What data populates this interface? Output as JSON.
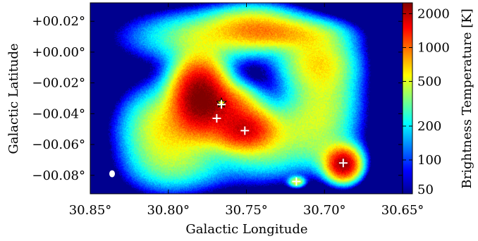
{
  "chart_data": {
    "type": "heatmap",
    "title": "",
    "xlabel": "Galactic Longitude",
    "ylabel": "Galactic Latitude",
    "xlim": [
      30.85,
      30.65
    ],
    "ylim": [
      -0.092,
      0.032
    ],
    "x_ticks": [
      {
        "value": 30.85,
        "label": "30.85°"
      },
      {
        "value": 30.8,
        "label": "30.80°"
      },
      {
        "value": 30.75,
        "label": "30.75°"
      },
      {
        "value": 30.7,
        "label": "30.70°"
      },
      {
        "value": 30.65,
        "label": "30.65°"
      }
    ],
    "y_ticks": [
      {
        "value": 0.02,
        "label": "+00.02°"
      },
      {
        "value": 0.0,
        "label": "+00.00°"
      },
      {
        "value": -0.02,
        "label": "−00.02°"
      },
      {
        "value": -0.04,
        "label": "−00.04°"
      },
      {
        "value": -0.06,
        "label": "−00.06°"
      },
      {
        "value": -0.08,
        "label": "−00.08°"
      }
    ],
    "colorbar": {
      "label": "Brightness Temperature [K]",
      "scale": "log",
      "range": [
        50,
        2500
      ],
      "ticks": [
        {
          "value": 2000,
          "label": "2000"
        },
        {
          "value": 1000,
          "label": "1000"
        },
        {
          "value": 500,
          "label": "500"
        },
        {
          "value": 200,
          "label": "200"
        },
        {
          "value": 100,
          "label": "100"
        },
        {
          "value": 50,
          "label": "50"
        }
      ],
      "colormap": "jet"
    },
    "background_color": "#00008f",
    "emission_components": [
      {
        "l": 30.78,
        "b": -0.028,
        "peak_K": 2400,
        "width_l": 0.01,
        "width_b": 0.014
      },
      {
        "l": 30.762,
        "b": -0.034,
        "peak_K": 900,
        "width_l": 0.012,
        "width_b": 0.008
      },
      {
        "l": 30.752,
        "b": -0.05,
        "peak_K": 1600,
        "width_l": 0.012,
        "width_b": 0.008
      },
      {
        "l": 30.79,
        "b": -0.045,
        "peak_K": 350,
        "width_l": 0.02,
        "width_b": 0.014
      },
      {
        "l": 30.775,
        "b": 0.01,
        "peak_K": 400,
        "width_l": 0.03,
        "width_b": 0.01
      },
      {
        "l": 30.745,
        "b": 0.018,
        "peak_K": 500,
        "width_l": 0.018,
        "width_b": 0.008
      },
      {
        "l": 30.725,
        "b": 0.012,
        "peak_K": 450,
        "width_l": 0.022,
        "width_b": 0.006
      },
      {
        "l": 30.705,
        "b": -0.005,
        "peak_K": 500,
        "width_l": 0.015,
        "width_b": 0.012
      },
      {
        "l": 30.7,
        "b": -0.03,
        "peak_K": 350,
        "width_l": 0.014,
        "width_b": 0.018
      },
      {
        "l": 30.715,
        "b": -0.05,
        "peak_K": 300,
        "width_l": 0.018,
        "width_b": 0.014
      },
      {
        "l": 30.805,
        "b": -0.055,
        "peak_K": 350,
        "width_l": 0.016,
        "width_b": 0.018
      },
      {
        "l": 30.79,
        "b": -0.075,
        "peak_K": 200,
        "width_l": 0.02,
        "width_b": 0.01
      },
      {
        "l": 30.74,
        "b": -0.065,
        "peak_K": 250,
        "width_l": 0.018,
        "width_b": 0.012
      },
      {
        "l": 30.688,
        "b": -0.073,
        "peak_K": 2000,
        "width_l": 0.006,
        "width_b": 0.006
      },
      {
        "l": 30.693,
        "b": -0.068,
        "peak_K": 300,
        "width_l": 0.01,
        "width_b": 0.008
      },
      {
        "l": 30.718,
        "b": -0.084,
        "peak_K": 500,
        "width_l": 0.003,
        "width_b": 0.002
      }
    ],
    "markers": [
      {
        "type": "star",
        "l": 30.766,
        "b": -0.033
      },
      {
        "type": "cross",
        "l": 30.766,
        "b": -0.034
      },
      {
        "type": "cross",
        "l": 30.769,
        "b": -0.043
      },
      {
        "type": "cross",
        "l": 30.751,
        "b": -0.051
      },
      {
        "type": "cross",
        "l": 30.718,
        "b": -0.084
      },
      {
        "type": "cross",
        "l": 30.688,
        "b": -0.072
      }
    ],
    "beam": {
      "l": 30.836,
      "b": -0.079
    }
  }
}
